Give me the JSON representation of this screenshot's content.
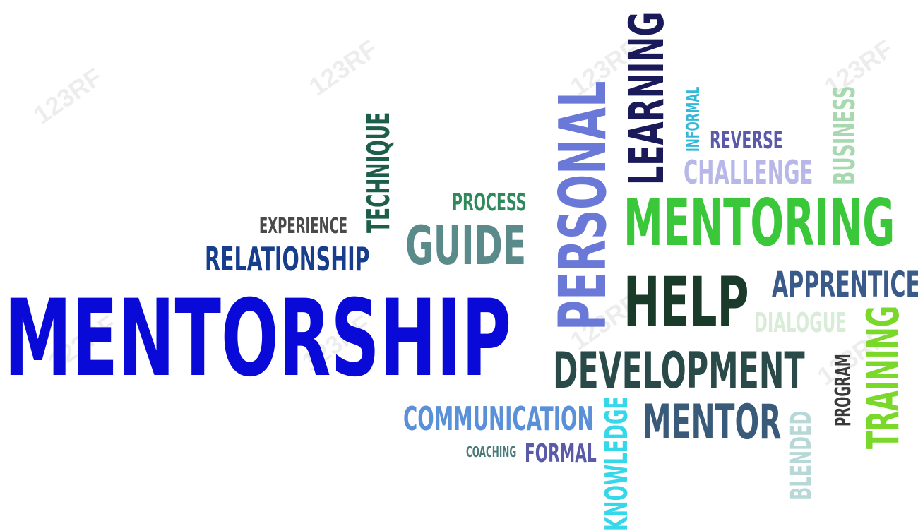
{
  "watermark": "123RF",
  "words": {
    "mentorship": "MENTORSHIP",
    "relationship": "RELATIONSHIP",
    "experience": "EXPERIENCE",
    "technique": "TECHNIQUE",
    "process": "PROCESS",
    "guide": "GUIDE",
    "personal": "PERSONAL",
    "learning": "LEARNING",
    "informal": "INFORMAL",
    "reverse": "REVERSE",
    "challenge": "CHALLENGE",
    "business": "BUSINESS",
    "mentoring": "MENTORING",
    "help": "HELP",
    "apprentice": "APPRENTICE",
    "dialogue": "DIALOGUE",
    "development": "DEVELOPMENT",
    "training": "TRAINING",
    "program": "PROGRAM",
    "communication": "COMMUNICATION",
    "coaching": "COACHING",
    "formal": "FORMAL",
    "knowledge": "KNOWLEDGE",
    "mentor": "MENTOR",
    "blended": "BLENDED"
  },
  "colors": {
    "mentorship": "#0a0ad8",
    "relationship": "#173d8c",
    "experience": "#4a4a4a",
    "technique": "#1c5e4a",
    "process": "#2e8a5a",
    "guide": "#5b8a8a",
    "personal": "#6a78d8",
    "learning": "#1a1a5a",
    "informal": "#35b8d8",
    "reverse": "#5a5aa8",
    "challenge": "#b8b8e8",
    "business": "#a8d8b0",
    "mentoring": "#3ac83a",
    "help": "#1a3a2a",
    "apprentice": "#3a5a8a",
    "dialogue": "#d8ecd8",
    "development": "#2a4a4a",
    "training": "#7ad82a",
    "program": "#3a3a3a",
    "communication": "#5a90d8",
    "coaching": "#4a7a7a",
    "formal": "#5a5aa8",
    "knowledge": "#35d8e8",
    "mentor": "#3a5a7a",
    "blended": "#b8d8d8"
  }
}
